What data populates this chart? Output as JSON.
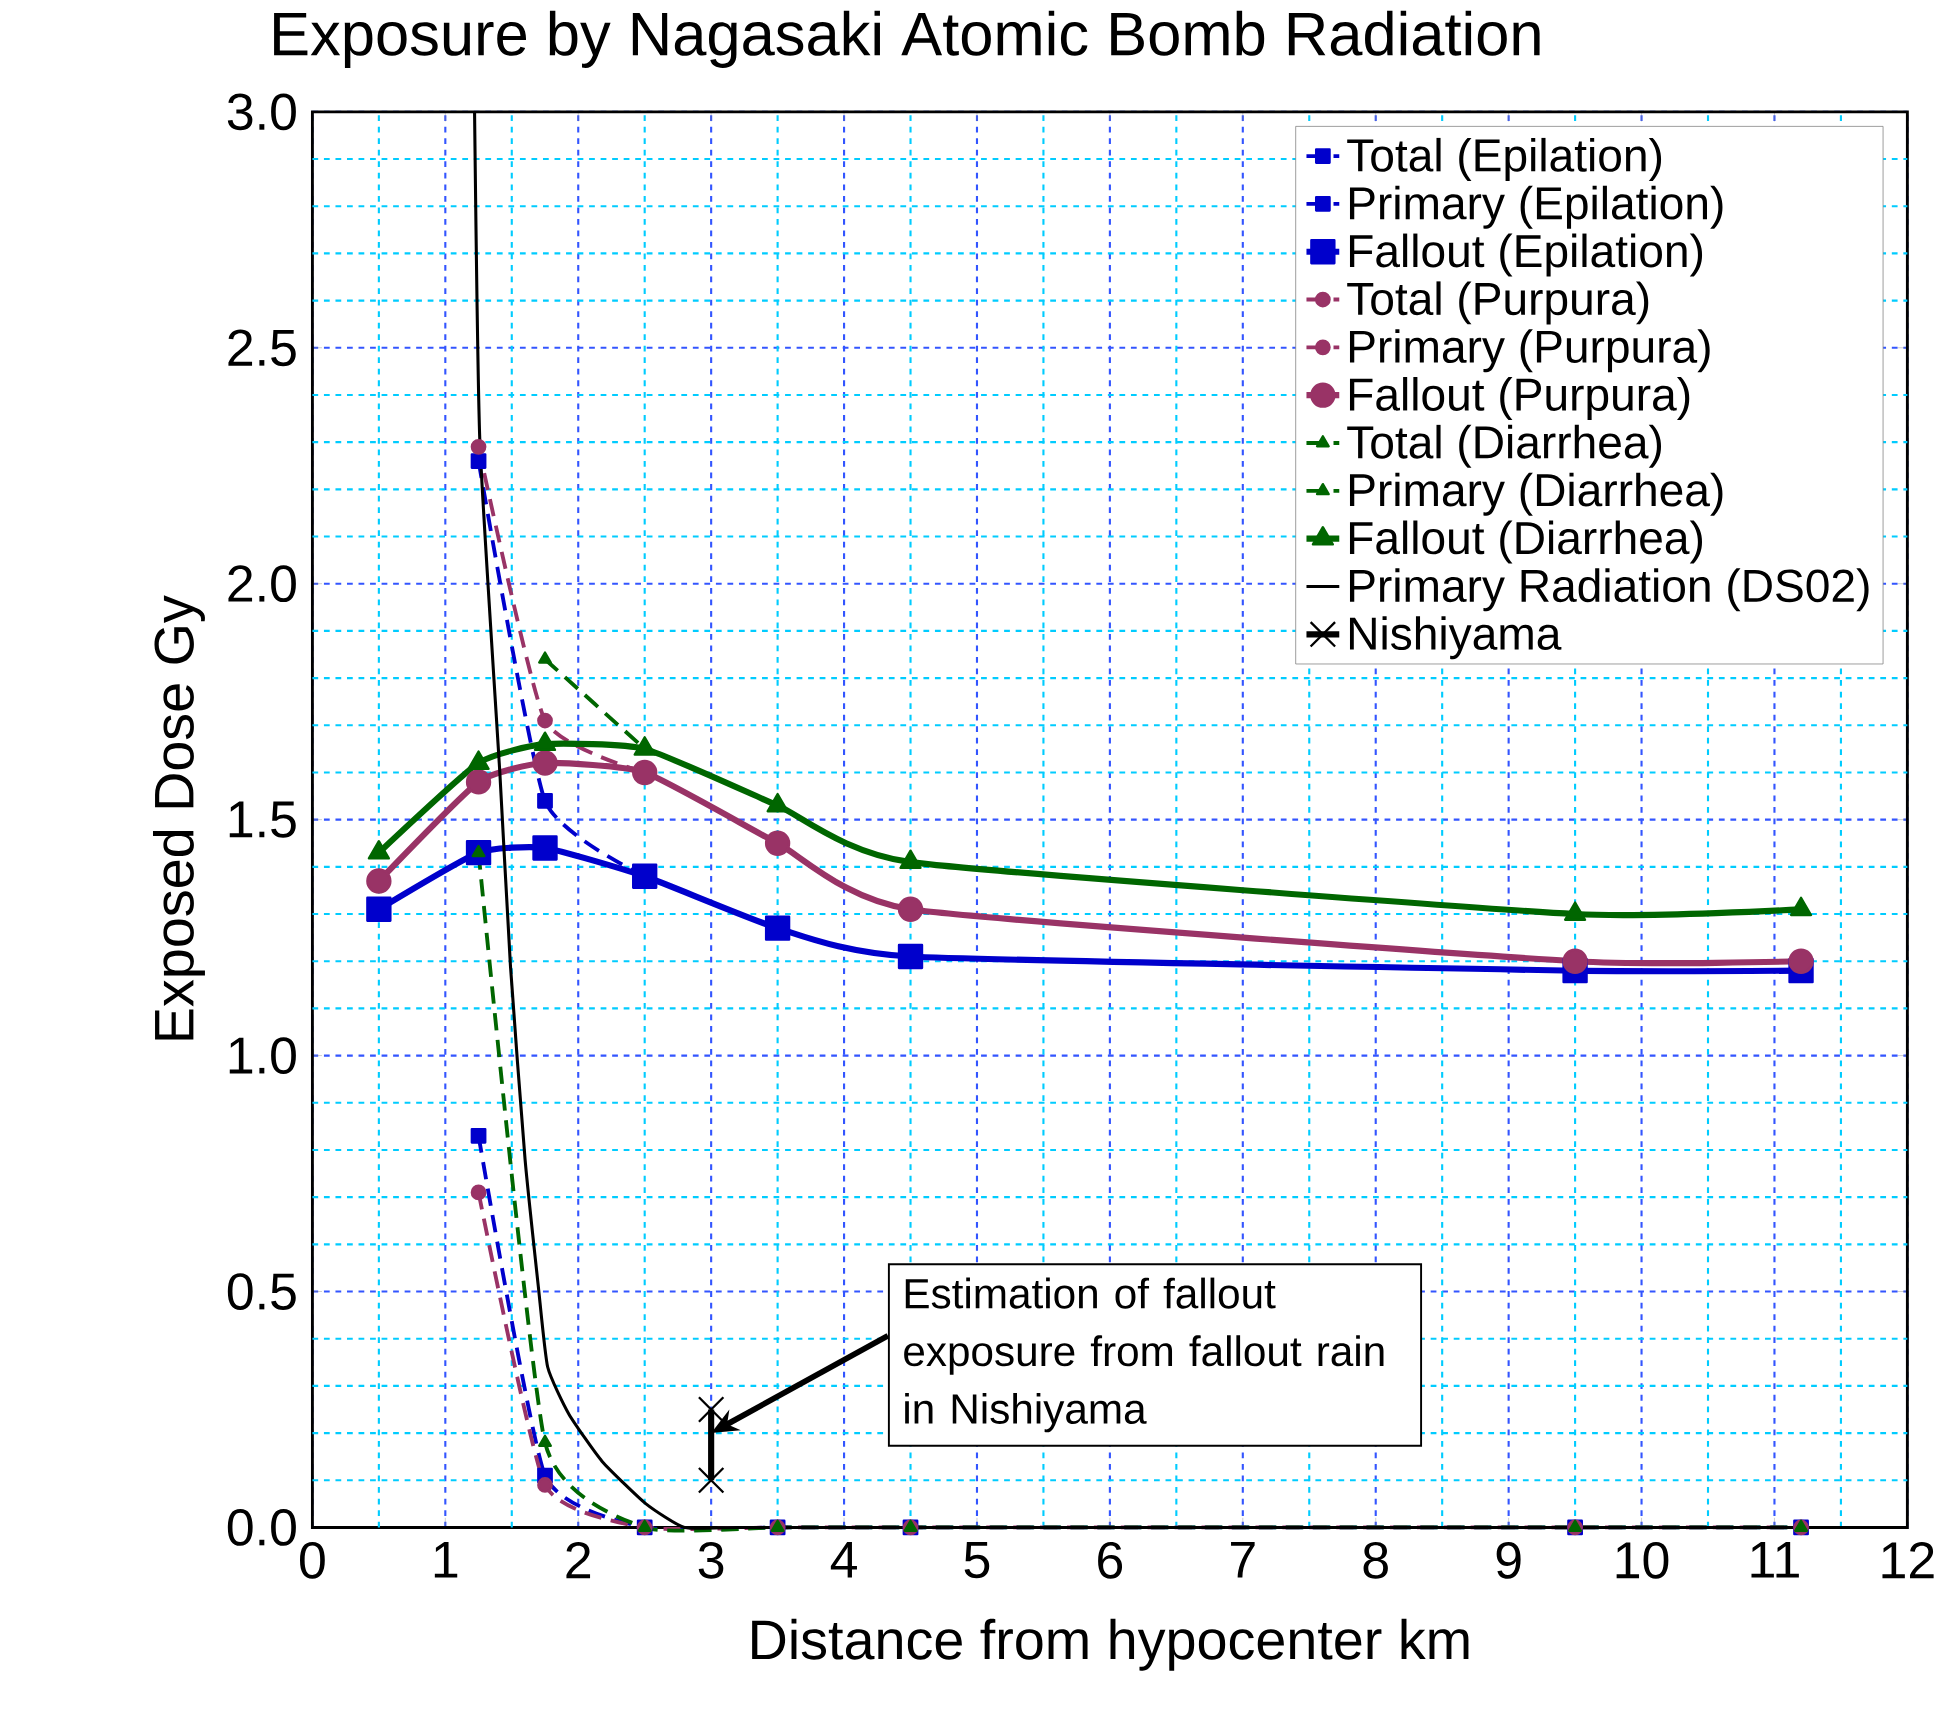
{
  "chart_data": {
    "type": "line",
    "title": "Exposure by Nagasaki Atomic Bomb Radiation",
    "xlabel": "Distance from hypocenter km",
    "ylabel": "Exposed Dose Gy",
    "x": [
      0.5,
      1.25,
      1.75,
      2.5,
      3.5,
      4.5,
      9.5,
      11.2
    ],
    "series": [
      {
        "name": "Total (Epilation)",
        "color": "#0000cc",
        "marker": "square",
        "line_style": "dashed",
        "values": [
          null,
          2.26,
          1.54,
          1.38,
          null,
          null,
          null,
          null
        ]
      },
      {
        "name": "Primary (Epilation)",
        "color": "#0000cc",
        "marker": "square",
        "line_style": "dashed",
        "values": [
          null,
          0.83,
          0.11,
          0,
          0,
          0,
          0,
          0
        ]
      },
      {
        "name": "Fallout (Epilation)",
        "color": "#0000cc",
        "marker": "square",
        "line_style": "solid",
        "values": [
          1.31,
          1.43,
          1.44,
          1.38,
          1.27,
          1.21,
          1.18,
          1.18
        ]
      },
      {
        "name": "Total (Purpura)",
        "color": "#993366",
        "marker": "circle",
        "line_style": "dashed",
        "values": [
          null,
          2.29,
          1.71,
          1.6,
          null,
          null,
          null,
          null
        ]
      },
      {
        "name": "Primary (Purpura)",
        "color": "#993366",
        "marker": "circle",
        "line_style": "dashed",
        "values": [
          null,
          0.71,
          0.09,
          0,
          0,
          0,
          0,
          0
        ]
      },
      {
        "name": "Fallout (Purpura)",
        "color": "#993366",
        "marker": "circle",
        "line_style": "solid",
        "values": [
          1.37,
          1.58,
          1.62,
          1.6,
          1.45,
          1.31,
          1.2,
          1.2
        ]
      },
      {
        "name": "Total (Diarrhea)",
        "color": "#006600",
        "marker": "triangle",
        "line_style": "dashed",
        "values": [
          null,
          null,
          1.84,
          1.65,
          null,
          null,
          null,
          null
        ]
      },
      {
        "name": "Primary (Diarrhea)",
        "color": "#006600",
        "marker": "triangle",
        "line_style": "dashed",
        "values": [
          null,
          1.43,
          0.18,
          0,
          0,
          0,
          0,
          0
        ]
      },
      {
        "name": "Fallout (Diarrhea)",
        "color": "#006600",
        "marker": "triangle",
        "line_style": "solid",
        "values": [
          1.43,
          1.62,
          1.66,
          1.65,
          1.53,
          1.41,
          1.3,
          1.31
        ]
      },
      {
        "name": "Primary Radiation (DS02)",
        "color": "#000000",
        "marker": "none",
        "line_style": "solid",
        "x": [
          1.22,
          1.26,
          1.41,
          1.49,
          1.6,
          1.7,
          1.77,
          1.93,
          2.18,
          2.51,
          2.8,
          3.2,
          4,
          6,
          9,
          12
        ],
        "values": [
          3.0,
          2.3,
          1.6,
          1.19,
          0.78,
          0.51,
          0.34,
          0.24,
          0.14,
          0.05,
          0,
          0,
          0,
          0,
          0,
          0
        ]
      },
      {
        "name": "Nishiyama",
        "color": "#000000",
        "marker": "cross",
        "line_style": "solid",
        "x": [
          3,
          3
        ],
        "values": [
          0.1,
          0.25
        ]
      }
    ],
    "xlim": [
      0,
      12
    ],
    "ylim": [
      0,
      3
    ],
    "xticks": [
      0,
      {
        "value": 0.5,
        "label": null
      },
      1,
      {
        "value": 1.5,
        "label": null
      },
      2,
      {
        "value": 2.5,
        "label": null
      },
      3,
      {
        "value": 3.5,
        "label": null
      },
      4,
      {
        "value": 4.5,
        "label": null
      },
      5,
      {
        "value": 5.5,
        "label": null
      },
      6,
      {
        "value": 6.5,
        "label": null
      },
      7,
      {
        "value": 7.5,
        "label": null
      },
      8,
      {
        "value": 8.5,
        "label": null
      },
      9,
      {
        "value": 9.5,
        "label": null
      },
      10,
      {
        "value": 10.5,
        "label": null
      },
      11,
      {
        "value": 11.5,
        "label": null
      },
      12
    ],
    "yticks": [
      {
        "value": 0,
        "label": "0.0"
      },
      {
        "value": 0.1,
        "label": null
      },
      {
        "value": 0.2,
        "label": null
      },
      {
        "value": 0.3,
        "label": null
      },
      {
        "value": 0.4,
        "label": null
      },
      {
        "value": 0.5,
        "label": "0.5"
      },
      {
        "value": 0.6,
        "label": null
      },
      {
        "value": 0.7,
        "label": null
      },
      {
        "value": 0.8,
        "label": null
      },
      {
        "value": 0.9,
        "label": null
      },
      {
        "value": 1,
        "label": "1.0"
      },
      {
        "value": 1.1,
        "label": null
      },
      {
        "value": 1.2,
        "label": null
      },
      {
        "value": 1.3,
        "label": null
      },
      {
        "value": 1.4,
        "label": null
      },
      {
        "value": 1.5,
        "label": "1.5"
      },
      {
        "value": 1.6,
        "label": null
      },
      {
        "value": 1.7,
        "label": null
      },
      {
        "value": 1.8,
        "label": null
      },
      {
        "value": 1.9,
        "label": null
      },
      {
        "value": 2,
        "label": "2.0"
      },
      {
        "value": 2.1,
        "label": null
      },
      {
        "value": 2.2,
        "label": null
      },
      {
        "value": 2.3,
        "label": null
      },
      {
        "value": 2.4,
        "label": null
      },
      {
        "value": 2.5,
        "label": "2.5"
      },
      {
        "value": 2.6,
        "label": null
      },
      {
        "value": 2.7,
        "label": null
      },
      {
        "value": 2.8,
        "label": null
      },
      {
        "value": 2.9,
        "label": null
      },
      {
        "value": 3,
        "label": "3.0"
      }
    ],
    "grid": true,
    "legend": "top right",
    "annotations": [
      {
        "text": "Estimation of fallout exposure from fallout rain in Nishiyama",
        "x": 3,
        "y": 0.2
      }
    ]
  }
}
